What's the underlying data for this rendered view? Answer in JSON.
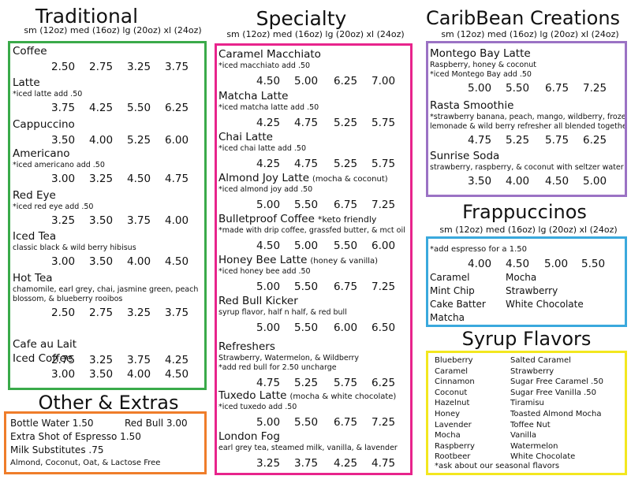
{
  "colors": {
    "traditional": "#3aaa4a",
    "specialty": "#e8248c",
    "caribbean": "#9b72c4",
    "frappuccinos": "#3aa9dd",
    "extras": "#ef7d2a",
    "syrups": "#f3e71f"
  },
  "size_header": "sm (12oz) med (16oz) lg (20oz) xl (24oz)",
  "traditional": {
    "title": "Traditional",
    "items": [
      {
        "name": "Coffee",
        "note": "",
        "prices": [
          "2.50",
          "2.75",
          "3.25",
          "3.75"
        ]
      },
      {
        "name": "Latte",
        "note": "*iced latte add .50",
        "prices": [
          "3.75",
          "4.25",
          "5.50",
          "6.25"
        ]
      },
      {
        "name": "Cappuccino",
        "note": "",
        "prices": [
          "3.50",
          "4.00",
          "5.25",
          "6.00"
        ]
      },
      {
        "name": "Americano",
        "note": "*iced americano add .50",
        "prices": [
          "3.00",
          "3.25",
          "4.50",
          "4.75"
        ]
      },
      {
        "name": "Red Eye",
        "note": "*iced red eye add .50",
        "prices": [
          "3.25",
          "3.50",
          "3.75",
          "4.00"
        ]
      },
      {
        "name": "Iced Tea",
        "note": "classic black & wild berry hibisus",
        "prices": [
          "3.00",
          "3.50",
          "4.00",
          "4.50"
        ]
      },
      {
        "name": "Hot Tea",
        "note": "chamomile, earl grey, chai, jasmine green, peach",
        "note2": "blossom, & blueberry rooibos",
        "prices": [
          "2.50",
          "2.75",
          "3.25",
          "3.75"
        ]
      },
      {
        "name": "Cafe au Lait",
        "note": "",
        "prices": [
          "2.75",
          "3.25",
          "3.75",
          "4.25"
        ]
      },
      {
        "name": "Iced Coffee",
        "note": "",
        "prices": [
          "3.00",
          "3.50",
          "4.00",
          "4.50"
        ]
      }
    ]
  },
  "specialty": {
    "title": "Specialty",
    "items": [
      {
        "name": "Caramel Macchiato",
        "paren": "",
        "note": "*iced macchiato add .50",
        "prices": [
          "4.50",
          "5.00",
          "6.25",
          "7.00"
        ]
      },
      {
        "name": "Matcha Latte",
        "paren": "",
        "note": "*iced matcha latte add .50",
        "prices": [
          "4.25",
          "4.75",
          "5.25",
          "5.75"
        ]
      },
      {
        "name": "Chai Latte",
        "paren": "",
        "note": "*iced chai latte add .50",
        "prices": [
          "4.25",
          "4.75",
          "5.25",
          "5.75"
        ]
      },
      {
        "name": "Almond Joy Latte",
        "paren": "(mocha & coconut)",
        "note": "*iced almond joy add .50",
        "prices": [
          "5.00",
          "5.50",
          "6.75",
          "7.25"
        ]
      },
      {
        "name": "Bulletproof Coffee",
        "paren": "*keto friendly",
        "note": "*made with drip coffee, grassfed butter, & mct oil",
        "prices": [
          "4.50",
          "5.00",
          "5.50",
          "6.00"
        ]
      },
      {
        "name": "Honey Bee Latte",
        "paren": "(honey & vanilla)",
        "note": "*iced honey bee add .50",
        "prices": [
          "5.00",
          "5.50",
          "6.75",
          "7.25"
        ]
      },
      {
        "name": "Red Bull Kicker",
        "paren": "",
        "note": "syrup flavor, half n half, & red bull",
        "prices": [
          "5.00",
          "5.50",
          "6.00",
          "6.50"
        ]
      },
      {
        "name": "Refreshers",
        "paren": "",
        "note": "Strawberry, Watermelon, & Wildberry",
        "note2": "*add red bull for 2.50 uncharge",
        "prices": [
          "4.75",
          "5.25",
          "5.75",
          "6.25"
        ]
      },
      {
        "name": "Tuxedo Latte",
        "paren": "(mocha & white chocolate)",
        "note": "*iced tuxedo add .50",
        "prices": [
          "5.00",
          "5.50",
          "6.75",
          "7.25"
        ]
      },
      {
        "name": "London Fog",
        "paren": "",
        "note": "earl grey tea, steamed milk, vanilla, & lavender",
        "prices": [
          "3.25",
          "3.75",
          "4.25",
          "4.75"
        ]
      }
    ]
  },
  "caribbean": {
    "title": "CaribBean Creations",
    "items": [
      {
        "name": "Montego Bay Latte",
        "note": "Raspberry, honey & coconut",
        "note2": "*iced Montego Bay add .50",
        "prices": [
          "5.00",
          "5.50",
          "6.75",
          "7.25"
        ]
      },
      {
        "name": "Rasta Smoothie",
        "note": "*strawberry banana, peach, mango, wildberry, frozen",
        "note2": "lemonade & wild berry refresher all blended together",
        "prices": [
          "4.75",
          "5.25",
          "5.75",
          "6.25"
        ]
      },
      {
        "name": "Sunrise Soda",
        "note": "strawberry, raspberry, & coconut with seltzer water",
        "prices": [
          "3.50",
          "4.00",
          "4.50",
          "5.00"
        ]
      }
    ]
  },
  "frappuccinos": {
    "title": "Frappuccinos",
    "note": "*add espresso for a 1.50",
    "prices": [
      "4.00",
      "4.50",
      "5.00",
      "5.50"
    ],
    "left": [
      "Caramel",
      "Mint Chip",
      "Cake Batter",
      "Matcha"
    ],
    "right": [
      "Mocha",
      "Strawberry",
      "White Chocolate"
    ]
  },
  "extras": {
    "title": "Other & Extras",
    "bottle_water": "Bottle Water 1.50",
    "red_bull": "Red Bull 3.00",
    "espresso": "Extra Shot of Espresso 1.50",
    "milk": "Milk Substitutes .75",
    "milk_note": "Almond, Coconut, Oat, & Lactose Free"
  },
  "syrups": {
    "title": "Syrup Flavors",
    "left": [
      "Blueberry",
      "Caramel",
      "Cinnamon",
      "Coconut",
      "Hazelnut",
      "Honey",
      "Lavender",
      "Mocha",
      "Raspberry",
      "Rootbeer"
    ],
    "right": [
      "Salted Caramel",
      "Strawberry",
      "Sugar Free Caramel .50",
      "Sugar Free Vanilla .50",
      "Tiramisu",
      "Toasted Almond Mocha",
      "Toffee Nut",
      "Vanilla",
      "Watermelon",
      "White Chocolate"
    ],
    "note": "*ask about our seasonal flavors"
  }
}
